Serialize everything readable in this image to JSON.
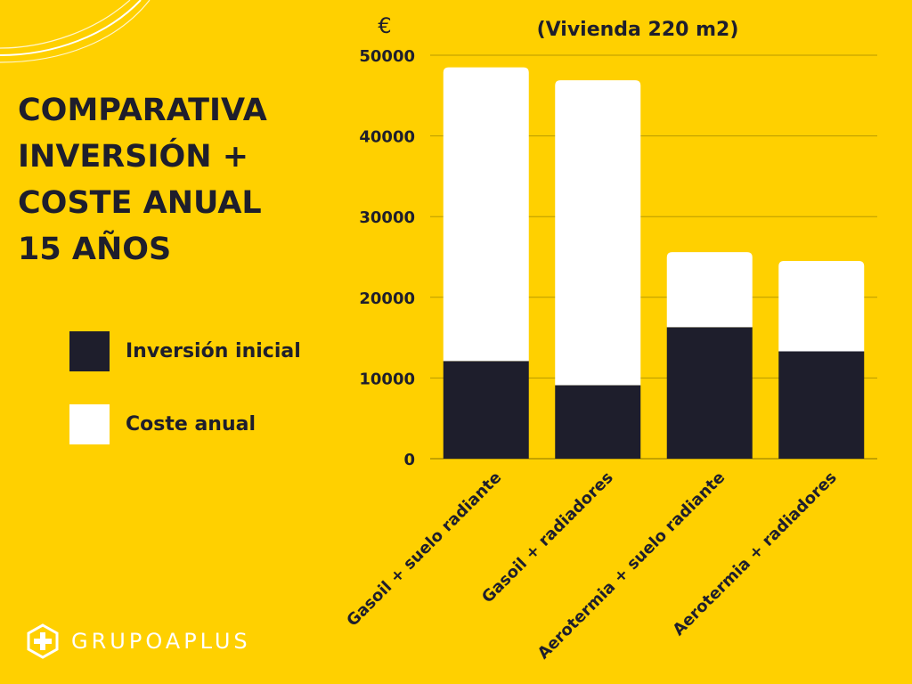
{
  "title_lines": [
    "COMPARATIVA",
    "INVERSIÓN +",
    "COSTE ANUAL",
    "15 AÑOS"
  ],
  "legend": [
    {
      "label": "Inversión inicial",
      "color": "#1E1E2C"
    },
    {
      "label": "Coste anual",
      "color": "#FFFFFF"
    }
  ],
  "brand": {
    "name": "GRUPOAPLUS",
    "logo_icon": "plus-in-hexagon"
  },
  "colors": {
    "background": "#FFD000",
    "dark": "#1E1E2C",
    "light": "#FFFFFF"
  },
  "chart_data": {
    "type": "bar",
    "stacked": true,
    "title": "(Vivienda 220 m2)",
    "ylabel": "€",
    "categories": [
      "Gasoil + suelo radiante",
      "Gasoil + radiadores",
      "Aerotermia + suelo radiante",
      "Aerotermia + radiadores"
    ],
    "series": [
      {
        "name": "Inversión inicial",
        "color": "#1E1E2C",
        "values": [
          12100,
          9100,
          16300,
          13300
        ]
      },
      {
        "name": "Coste anual",
        "color": "#FFFFFF",
        "values": [
          36400,
          37800,
          9300,
          11200
        ]
      }
    ],
    "ylim": [
      0,
      50000
    ],
    "yticks": [
      0,
      10000,
      20000,
      30000,
      40000,
      50000
    ],
    "grid": true
  }
}
